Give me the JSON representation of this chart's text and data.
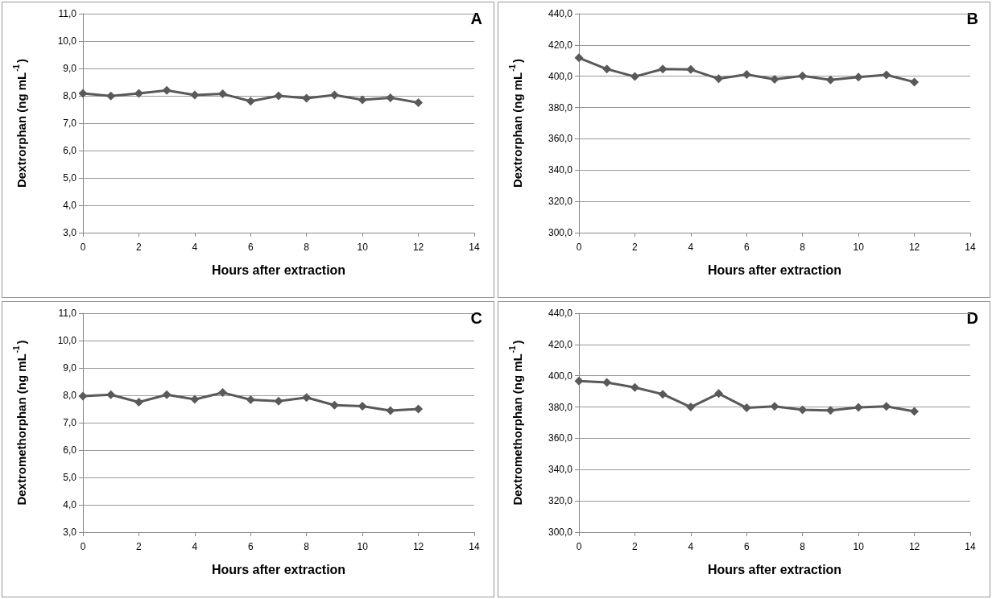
{
  "chart_data": [
    {
      "type": "line",
      "xlabel": "Hours after extraction",
      "ylabel": "Dextrorphan (ng mL$^{-1}$)",
      "annotations": [
        "A"
      ],
      "x": [
        0,
        1,
        2,
        3,
        4,
        5,
        6,
        7,
        8,
        9,
        10,
        11,
        12
      ],
      "series": [
        {
          "color": "#595959",
          "values": [
            8.09,
            7.99,
            8.09,
            8.2,
            8.03,
            8.07,
            7.8,
            8.0,
            7.91,
            8.03,
            7.85,
            7.93,
            7.75
          ]
        }
      ],
      "xlim": [
        0,
        14
      ],
      "xticks": [
        0,
        2,
        4,
        6,
        8,
        10,
        12,
        14
      ],
      "ylim": [
        3,
        11
      ],
      "yticks": [
        {
          "value": 3,
          "label": "3,0"
        },
        {
          "value": 4,
          "label": "4,0"
        },
        {
          "value": 5,
          "label": "5,0"
        },
        {
          "value": 6,
          "label": "6,0"
        },
        {
          "value": 7,
          "label": "7,0"
        },
        {
          "value": 8,
          "label": "8,0"
        },
        {
          "value": 9,
          "label": "9,0"
        },
        {
          "value": 10,
          "label": "10,0"
        },
        {
          "value": 11,
          "label": "11,0"
        }
      ],
      "grid": "y",
      "marker": "diamond",
      "line_style": "solid"
    },
    {
      "type": "line",
      "xlabel": "Hours after extraction",
      "ylabel": "Dextrorphan (ng mL$^{-1}$)",
      "annotations": [
        "B"
      ],
      "x": [
        0,
        1,
        2,
        3,
        4,
        5,
        6,
        7,
        8,
        9,
        10,
        11,
        12
      ],
      "series": [
        {
          "color": "#595959",
          "values": [
            411.8,
            404.6,
            399.8,
            404.6,
            404.3,
            398.4,
            401.1,
            398.0,
            400.2,
            397.7,
            399.5,
            400.9,
            396.3
          ]
        }
      ],
      "xlim": [
        0,
        14
      ],
      "xticks": [
        0,
        2,
        4,
        6,
        8,
        10,
        12,
        14
      ],
      "ylim": [
        300,
        440
      ],
      "yticks": [
        {
          "value": 300,
          "label": "300,0"
        },
        {
          "value": 320,
          "label": "320,0"
        },
        {
          "value": 340,
          "label": "340,0"
        },
        {
          "value": 360,
          "label": "360,0"
        },
        {
          "value": 380,
          "label": "380,0"
        },
        {
          "value": 400,
          "label": "400,0"
        },
        {
          "value": 420,
          "label": "420,0"
        },
        {
          "value": 440,
          "label": "440,0"
        }
      ],
      "grid": "y",
      "marker": "diamond",
      "line_style": "solid"
    },
    {
      "type": "line",
      "xlabel": "Hours after extraction",
      "ylabel": "Dextromethorphan (ng mL$^{-1}$)",
      "annotations": [
        "C"
      ],
      "x": [
        0,
        1,
        2,
        3,
        4,
        5,
        6,
        7,
        8,
        9,
        10,
        11,
        12
      ],
      "series": [
        {
          "color": "#595959",
          "values": [
            7.97,
            8.02,
            7.75,
            8.02,
            7.85,
            8.1,
            7.84,
            7.79,
            7.92,
            7.64,
            7.6,
            7.44,
            7.5
          ]
        }
      ],
      "xlim": [
        0,
        14
      ],
      "xticks": [
        0,
        2,
        4,
        6,
        8,
        10,
        12,
        14
      ],
      "ylim": [
        3,
        11
      ],
      "yticks": [
        {
          "value": 3,
          "label": "3,0"
        },
        {
          "value": 4,
          "label": "4,0"
        },
        {
          "value": 5,
          "label": "5,0"
        },
        {
          "value": 6,
          "label": "6,0"
        },
        {
          "value": 7,
          "label": "7,0"
        },
        {
          "value": 8,
          "label": "8,0"
        },
        {
          "value": 9,
          "label": "9,0"
        },
        {
          "value": 10,
          "label": "10,0"
        },
        {
          "value": 11,
          "label": "11,0"
        }
      ],
      "grid": "y",
      "marker": "diamond",
      "line_style": "solid"
    },
    {
      "type": "line",
      "xlabel": "Hours after extraction",
      "ylabel": "Dextromethorphan (ng mL$^{-1}$)",
      "annotations": [
        "D"
      ],
      "x": [
        0,
        1,
        2,
        3,
        4,
        5,
        6,
        7,
        8,
        9,
        10,
        11,
        12
      ],
      "series": [
        {
          "color": "#595959",
          "values": [
            396.6,
            395.7,
            392.5,
            388.2,
            380.0,
            388.6,
            379.5,
            380.4,
            378.2,
            377.8,
            379.8,
            380.4,
            377.2
          ]
        }
      ],
      "xlim": [
        0,
        14
      ],
      "xticks": [
        0,
        2,
        4,
        6,
        8,
        10,
        12,
        14
      ],
      "ylim": [
        300,
        440
      ],
      "yticks": [
        {
          "value": 300,
          "label": "300,0"
        },
        {
          "value": 320,
          "label": "320,0"
        },
        {
          "value": 340,
          "label": "340,0"
        },
        {
          "value": 360,
          "label": "360,0"
        },
        {
          "value": 380,
          "label": "380,0"
        },
        {
          "value": 400,
          "label": "400,0"
        },
        {
          "value": 420,
          "label": "420,0"
        },
        {
          "value": 440,
          "label": "440,0"
        }
      ],
      "grid": "y",
      "marker": "diamond",
      "line_style": "solid"
    }
  ]
}
